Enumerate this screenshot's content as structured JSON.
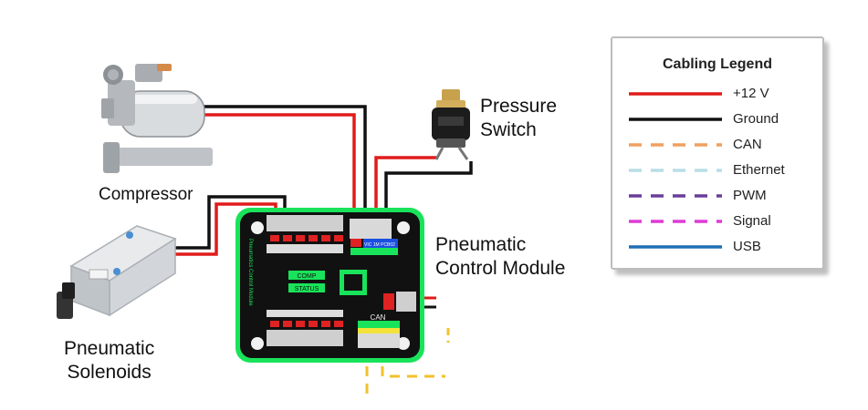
{
  "labels": {
    "compressor": "Compressor",
    "pressure_switch_line1": "Pressure",
    "pressure_switch_line2": "Switch",
    "pcm_line1": "Pneumatic",
    "pcm_line2": "Control Module",
    "solenoids_line1": "Pneumatic",
    "solenoids_line2": "Solenoids"
  },
  "board_text": {
    "can": "CAN",
    "comp": "COMP",
    "status": "STATUS",
    "side": "Pneumatics Control Module",
    "chip": "VIC 1M PCB02"
  },
  "legend": {
    "title": "Cabling Legend",
    "items": [
      {
        "label": "+12 V",
        "color": "#e01b1b",
        "style": "solid"
      },
      {
        "label": "Ground",
        "color": "#111111",
        "style": "solid"
      },
      {
        "label": "CAN",
        "color": "#f0a060",
        "style": "dashed"
      },
      {
        "label": "Ethernet",
        "color": "#b8dde6",
        "style": "dashed"
      },
      {
        "label": "PWM",
        "color": "#6a3d9a",
        "style": "dashed"
      },
      {
        "label": "Signal",
        "color": "#e03ad6",
        "style": "dashed"
      },
      {
        "label": "USB",
        "color": "#1f6fb4",
        "style": "solid"
      }
    ]
  }
}
